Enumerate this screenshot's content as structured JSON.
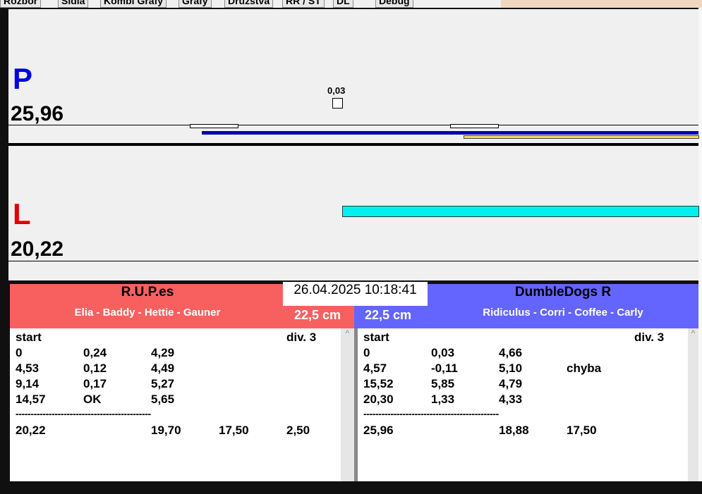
{
  "tabs": [
    "Rozbor",
    "Sidla",
    "Kombi Grafy",
    "Grafy",
    "Družstva",
    "RR / ST",
    "DL",
    "Debug"
  ],
  "top_panel": {
    "label": "P",
    "score": "25,96",
    "marker": "0,03"
  },
  "bottom_panel": {
    "label": "L",
    "score": "20,22"
  },
  "timestamp": "26.04.2025 10:18:41",
  "left_team": {
    "name": "R.U.P.es",
    "members": "Elia - Baddy - Hettie - Gauner",
    "height": "22,5 cm",
    "header": [
      "start",
      null,
      null,
      null,
      "div.  3"
    ],
    "rows": [
      [
        "0",
        "0,24",
        "4,29"
      ],
      [
        "4,53",
        "0,12",
        "4,49"
      ],
      [
        "9,14",
        "0,17",
        "5,27"
      ],
      [
        "14,57",
        "OK",
        "5,65"
      ]
    ],
    "separator": "---------------------------------------------",
    "total": [
      "20,22",
      null,
      "19,70",
      "17,50",
      "2,50"
    ]
  },
  "right_team": {
    "name": "DumbleDogs R",
    "members": "Ridiculus - Corri - Coffee - Carly",
    "height": "22,5 cm",
    "header": [
      "start",
      null,
      null,
      null,
      "div.  3"
    ],
    "rows": [
      [
        "0",
        "0,03",
        "4,66"
      ],
      [
        "4,57",
        "-0,11",
        "5,10",
        "chyba"
      ],
      [
        "15,52",
        "5,85",
        "4,79"
      ],
      [
        "20,30",
        "1,33",
        "4,33"
      ]
    ],
    "separator": "---------------------------------------------",
    "total": [
      "25,96",
      null,
      "18,88",
      "17,50"
    ]
  }
}
